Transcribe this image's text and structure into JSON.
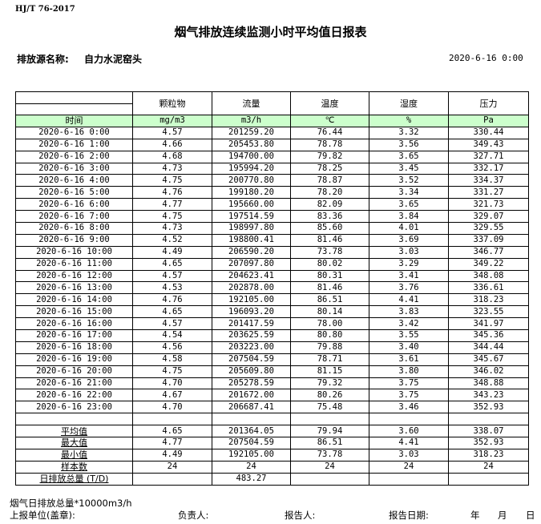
{
  "standard": "HJ/T  76-2017",
  "title": "烟气排放连续监测小时平均值日报表",
  "source_label": "排放源名称:",
  "source_name": "自力水泥窑头",
  "report_datetime": "2020-6-16 0:00",
  "columns": [
    "颗粒物",
    "流量",
    "温度",
    "湿度",
    "压力"
  ],
  "time_header": "时间",
  "units": [
    "mg/m3",
    "m3/h",
    "℃",
    "%",
    "Pa"
  ],
  "rows": [
    [
      "2020-6-16 0:00",
      "4.57",
      "201259.20",
      "76.44",
      "3.32",
      "330.44"
    ],
    [
      "2020-6-16 1:00",
      "4.66",
      "205453.80",
      "78.78",
      "3.56",
      "349.43"
    ],
    [
      "2020-6-16 2:00",
      "4.68",
      "194700.00",
      "79.82",
      "3.65",
      "327.71"
    ],
    [
      "2020-6-16 3:00",
      "4.73",
      "195994.20",
      "78.25",
      "3.45",
      "332.17"
    ],
    [
      "2020-6-16 4:00",
      "4.75",
      "200770.80",
      "78.87",
      "3.52",
      "334.37"
    ],
    [
      "2020-6-16 5:00",
      "4.76",
      "199180.20",
      "78.20",
      "3.34",
      "331.27"
    ],
    [
      "2020-6-16 6:00",
      "4.77",
      "195660.00",
      "82.09",
      "3.65",
      "321.73"
    ],
    [
      "2020-6-16 7:00",
      "4.75",
      "197514.59",
      "83.36",
      "3.84",
      "329.07"
    ],
    [
      "2020-6-16 8:00",
      "4.73",
      "198997.80",
      "85.60",
      "4.01",
      "329.55"
    ],
    [
      "2020-6-16 9:00",
      "4.52",
      "198800.41",
      "81.46",
      "3.69",
      "337.09"
    ],
    [
      "2020-6-16 10:00",
      "4.49",
      "206590.20",
      "73.78",
      "3.03",
      "346.77"
    ],
    [
      "2020-6-16 11:00",
      "4.65",
      "207097.80",
      "80.02",
      "3.29",
      "349.22"
    ],
    [
      "2020-6-16 12:00",
      "4.57",
      "204623.41",
      "80.31",
      "3.41",
      "348.08"
    ],
    [
      "2020-6-16 13:00",
      "4.53",
      "202878.00",
      "81.46",
      "3.76",
      "336.61"
    ],
    [
      "2020-6-16 14:00",
      "4.76",
      "192105.00",
      "86.51",
      "4.41",
      "318.23"
    ],
    [
      "2020-6-16 15:00",
      "4.65",
      "196093.20",
      "80.14",
      "3.83",
      "323.55"
    ],
    [
      "2020-6-16 16:00",
      "4.57",
      "201417.59",
      "78.00",
      "3.42",
      "341.97"
    ],
    [
      "2020-6-16 17:00",
      "4.54",
      "203625.59",
      "80.80",
      "3.55",
      "345.36"
    ],
    [
      "2020-6-16 18:00",
      "4.56",
      "203223.00",
      "79.88",
      "3.40",
      "344.44"
    ],
    [
      "2020-6-16 19:00",
      "4.58",
      "207504.59",
      "78.71",
      "3.61",
      "345.67"
    ],
    [
      "2020-6-16 20:00",
      "4.75",
      "205609.80",
      "81.15",
      "3.80",
      "346.02"
    ],
    [
      "2020-6-16 21:00",
      "4.70",
      "205278.59",
      "79.32",
      "3.75",
      "348.88"
    ],
    [
      "2020-6-16 22:00",
      "4.67",
      "201672.00",
      "80.26",
      "3.75",
      "343.23"
    ],
    [
      "2020-6-16 23:00",
      "4.70",
      "206687.41",
      "75.48",
      "3.46",
      "352.93"
    ]
  ],
  "stats": [
    [
      "平均值",
      "4.65",
      "201364.05",
      "79.94",
      "3.60",
      "338.07"
    ],
    [
      "最大值",
      "4.77",
      "207504.59",
      "86.51",
      "4.41",
      "352.93"
    ],
    [
      "最小值",
      "4.49",
      "192105.00",
      "73.78",
      "3.03",
      "318.23"
    ],
    [
      "样本数",
      "24",
      "24",
      "24",
      "24",
      "24"
    ]
  ],
  "total": {
    "label": "日排放总量 (T/D)",
    "values": [
      "",
      "483.27",
      "",
      "",
      ""
    ]
  },
  "footer": {
    "note": "烟气日排放总量*10000m3/h",
    "unit_label": "上报单位(盖章):",
    "responsible_label": "负责人:",
    "reporter_label": "报告人:",
    "date_label": "报告日期:",
    "year": "年",
    "month": "月",
    "day": "日"
  }
}
